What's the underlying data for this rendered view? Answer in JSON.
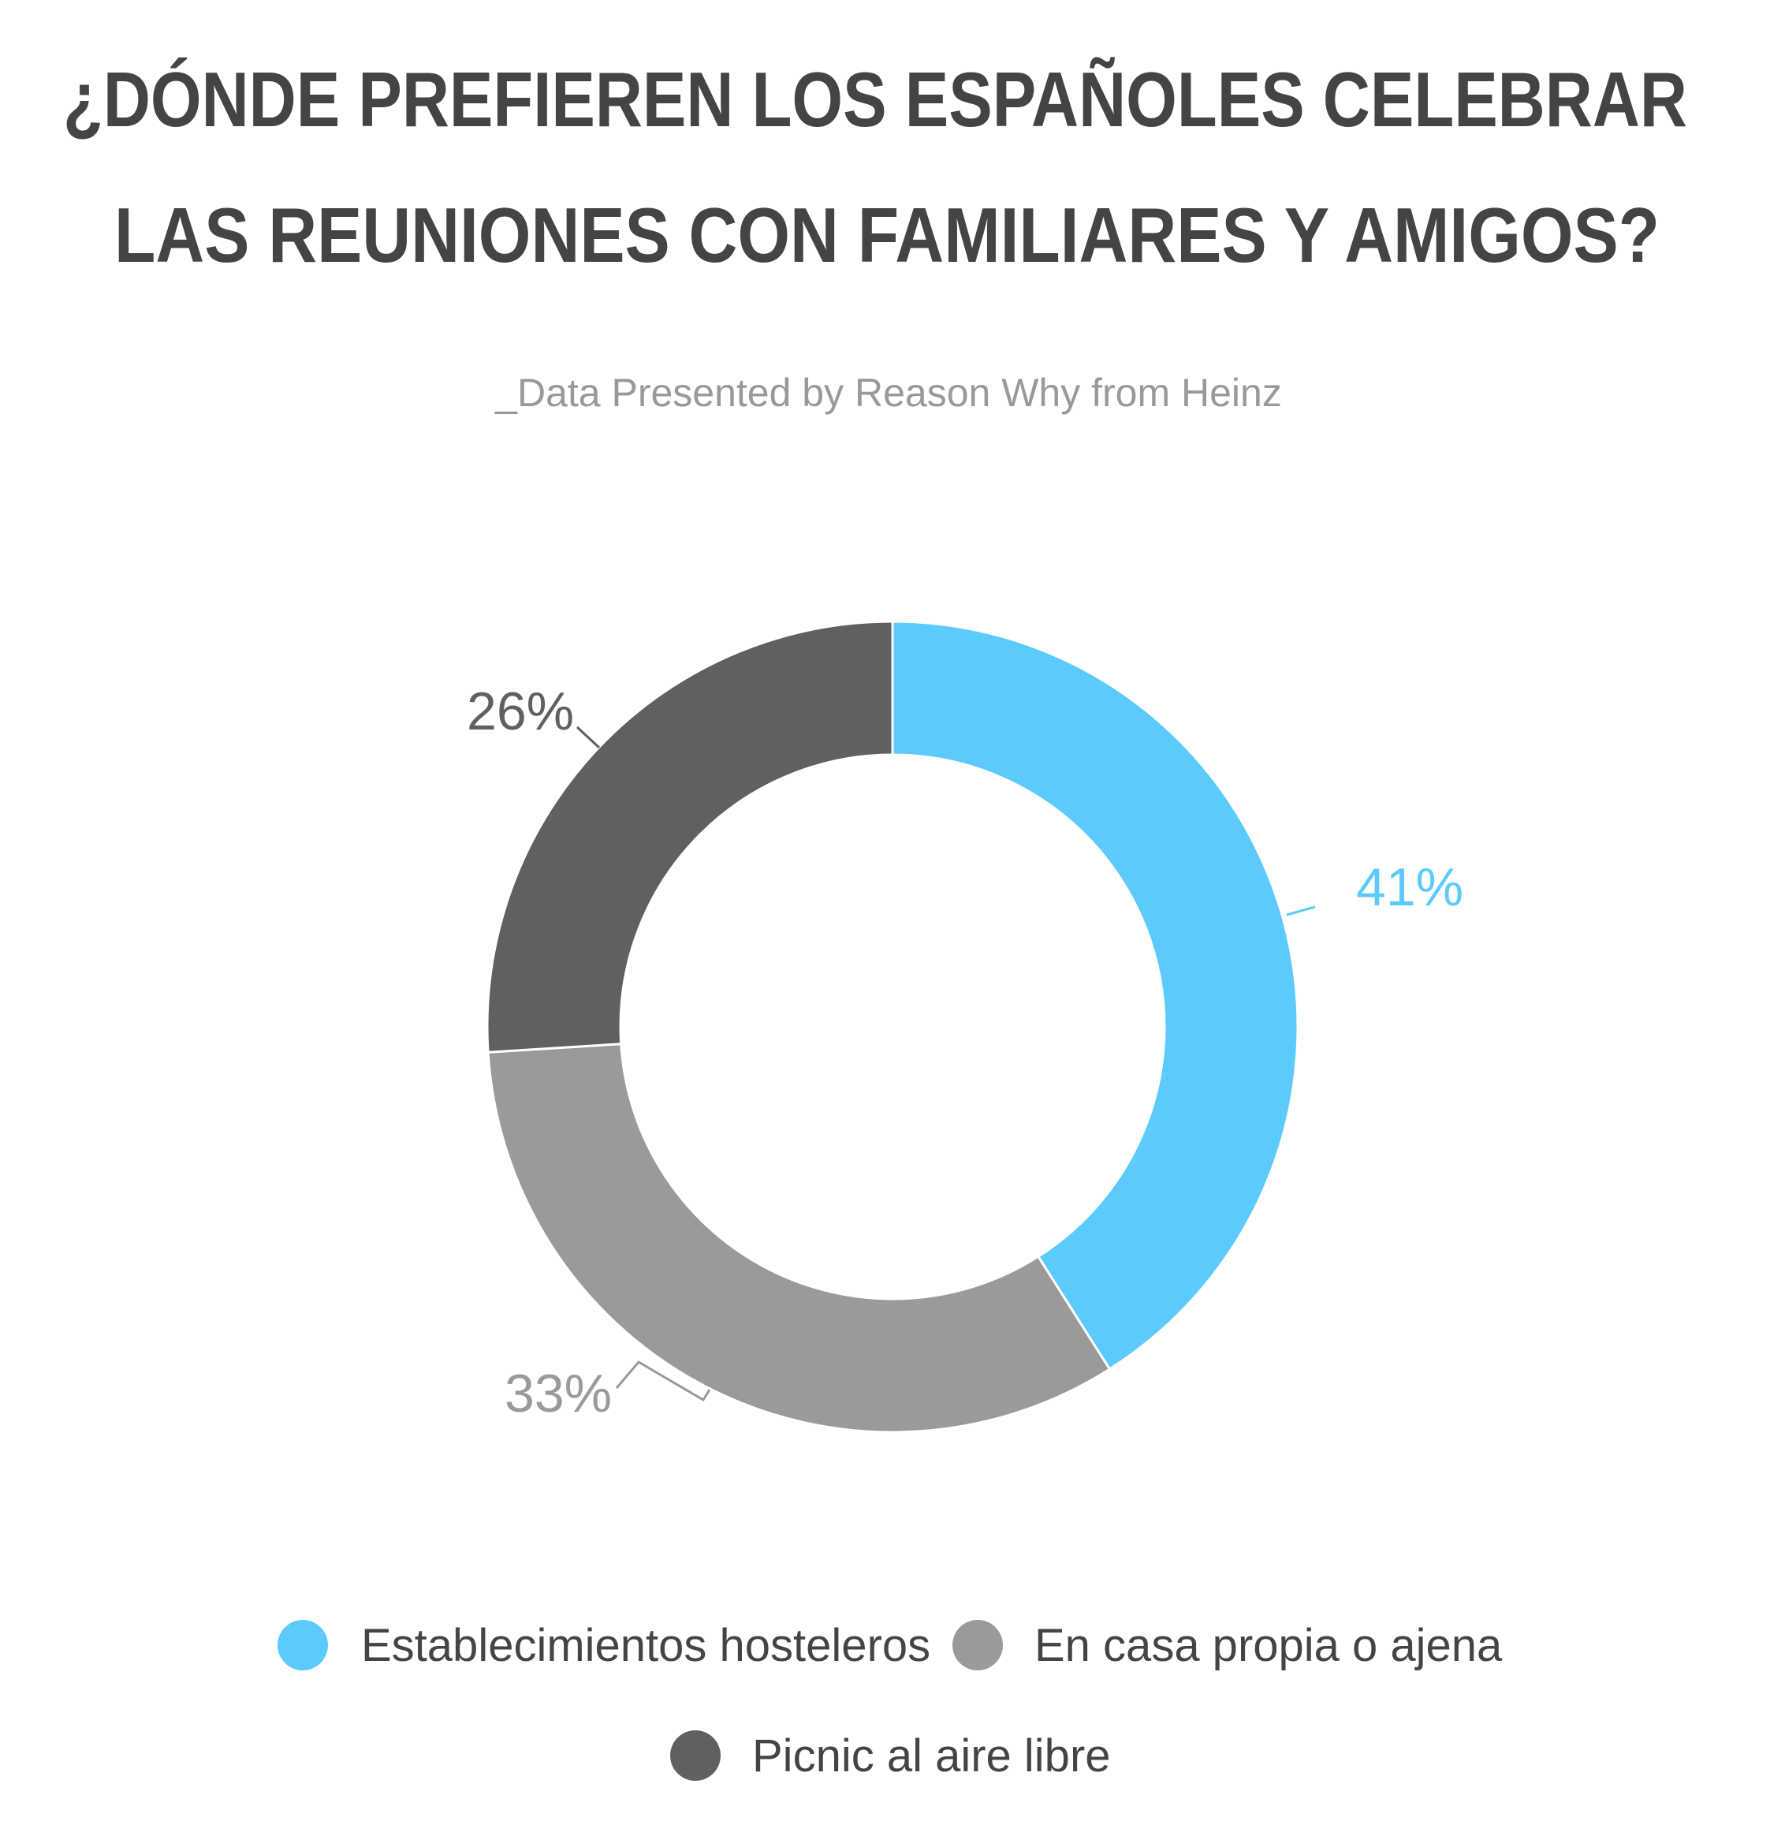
{
  "chart_data": {
    "type": "pie",
    "variant": "donut",
    "title_lines": [
      "¿DÓNDE PREFIEREN LOS ESPAÑOLES CELEBRAR",
      "LAS REUNIONES CON FAMILIARES Y AMIGOS?"
    ],
    "subtitle": "_Data Presented by Reason Why from Heinz",
    "slices": [
      {
        "name": "Establecimientos hosteleros",
        "value": 41,
        "label": "41%",
        "color": "#5ccbfc"
      },
      {
        "name": "En casa propia o ajena",
        "value": 33,
        "label": "33%",
        "color": "#9a9a9a"
      },
      {
        "name": "Picnic al aire libre",
        "value": 26,
        "label": "26%",
        "color": "#606060"
      }
    ],
    "legend_position": "bottom"
  }
}
